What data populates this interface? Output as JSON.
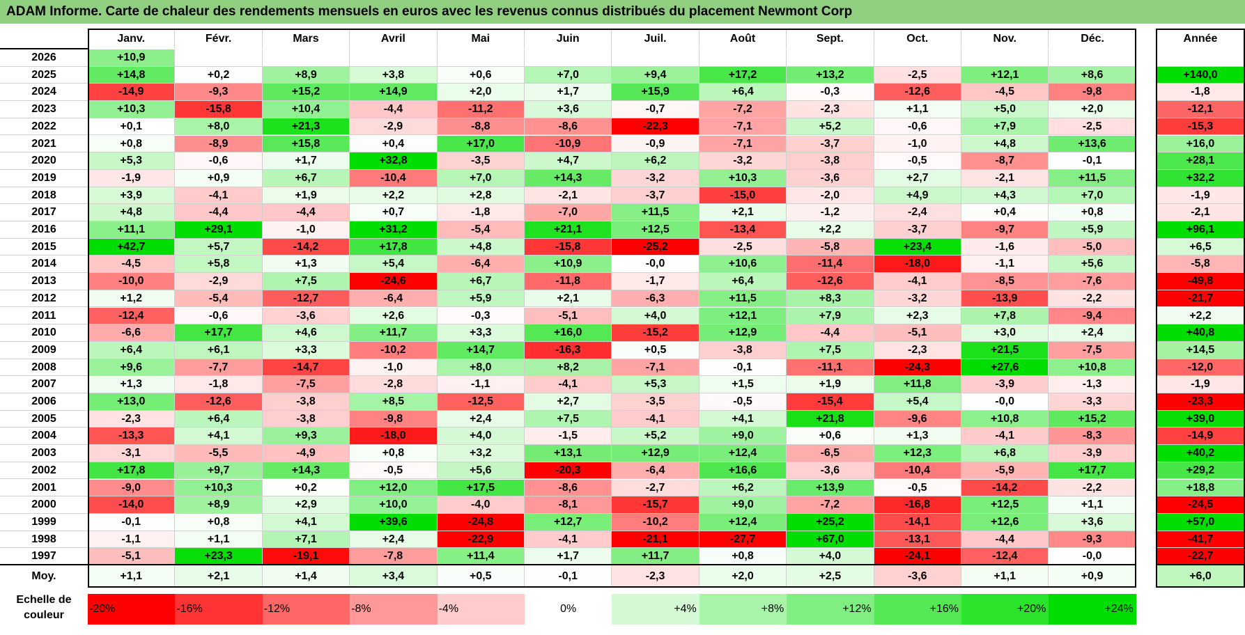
{
  "title": "ADAM Informe. Carte de chaleur des rendements mensuels en euros avec les revenus connus distribués du placement Newmont Corp",
  "chart_data": {
    "type": "heatmap",
    "title": "ADAM Informe. Carte de chaleur des rendements mensuels en euros avec les revenus connus distribués du placement Newmont Corp",
    "months": [
      "Janv.",
      "Févr.",
      "Mars",
      "Avril",
      "Mai",
      "Juin",
      "Juil.",
      "Août",
      "Sept.",
      "Oct.",
      "Nov.",
      "Déc."
    ],
    "year_header": "Année",
    "rows": [
      {
        "year": "2026",
        "values": [
          "+10,9",
          "",
          "",
          "",
          "",
          "",
          "",
          "",
          "",
          "",
          "",
          ""
        ],
        "annual": ""
      },
      {
        "year": "2025",
        "values": [
          "+14,8",
          "+0,2",
          "+8,9",
          "+3,8",
          "+0,6",
          "+7,0",
          "+9,4",
          "+17,2",
          "+13,2",
          "-2,5",
          "+12,1",
          "+8,6"
        ],
        "annual": "+140,0"
      },
      {
        "year": "2024",
        "values": [
          "-14,9",
          "-9,3",
          "+15,2",
          "+14,9",
          "+2,0",
          "+1,7",
          "+15,9",
          "+6,4",
          "-0,3",
          "-12,6",
          "-4,5",
          "-9,8"
        ],
        "annual": "-1,8"
      },
      {
        "year": "2023",
        "values": [
          "+10,3",
          "-15,8",
          "+10,4",
          "-4,4",
          "-11,2",
          "+3,6",
          "-0,7",
          "-7,2",
          "-2,3",
          "+1,1",
          "+5,0",
          "+2,0"
        ],
        "annual": "-12,1"
      },
      {
        "year": "2022",
        "values": [
          "+0,1",
          "+8,0",
          "+21,3",
          "-2,9",
          "-8,8",
          "-8,6",
          "-22,3",
          "-7,1",
          "+5,2",
          "-0,6",
          "+7,9",
          "-2,5"
        ],
        "annual": "-15,3"
      },
      {
        "year": "2021",
        "values": [
          "+0,8",
          "-8,9",
          "+15,8",
          "+0,4",
          "+17,0",
          "-10,9",
          "-0,9",
          "-7,1",
          "-3,7",
          "-1,0",
          "+4,8",
          "+13,6"
        ],
        "annual": "+16,0"
      },
      {
        "year": "2020",
        "values": [
          "+5,3",
          "-0,6",
          "+1,7",
          "+32,8",
          "-3,5",
          "+4,7",
          "+6,2",
          "-3,2",
          "-3,8",
          "-0,5",
          "-8,7",
          "-0,1"
        ],
        "annual": "+28,1"
      },
      {
        "year": "2019",
        "values": [
          "-1,9",
          "+0,9",
          "+6,7",
          "-10,4",
          "+7,0",
          "+14,3",
          "-3,2",
          "+10,3",
          "-3,6",
          "+2,7",
          "-2,1",
          "+11,5"
        ],
        "annual": "+32,2"
      },
      {
        "year": "2018",
        "values": [
          "+3,9",
          "-4,1",
          "+1,9",
          "+2,2",
          "+2,8",
          "-2,1",
          "-3,7",
          "-15,0",
          "-2,0",
          "+4,9",
          "+4,3",
          "+7,0"
        ],
        "annual": "-1,9"
      },
      {
        "year": "2017",
        "values": [
          "+4,8",
          "-4,4",
          "-4,4",
          "+0,7",
          "-1,8",
          "-7,0",
          "+11,5",
          "+2,1",
          "-1,2",
          "-2,4",
          "+0,4",
          "+0,8"
        ],
        "annual": "-2,1"
      },
      {
        "year": "2016",
        "values": [
          "+11,1",
          "+29,1",
          "-1,0",
          "+31,2",
          "-5,4",
          "+21,1",
          "+12,5",
          "-13,4",
          "+2,2",
          "-3,7",
          "-9,7",
          "+5,9"
        ],
        "annual": "+96,1"
      },
      {
        "year": "2015",
        "values": [
          "+42,7",
          "+5,7",
          "-14,2",
          "+17,8",
          "+4,8",
          "-15,8",
          "-25,2",
          "-2,5",
          "-5,8",
          "+23,4",
          "-1,6",
          "-5,0"
        ],
        "annual": "+6,5"
      },
      {
        "year": "2014",
        "values": [
          "-4,5",
          "+5,8",
          "+1,3",
          "+5,4",
          "-6,4",
          "+10,9",
          "-0,0",
          "+10,6",
          "-11,4",
          "-18,0",
          "-1,1",
          "+5,6"
        ],
        "annual": "-5,8"
      },
      {
        "year": "2013",
        "values": [
          "-10,0",
          "-2,9",
          "+7,5",
          "-24,6",
          "+6,7",
          "-11,8",
          "-1,7",
          "+6,4",
          "-12,6",
          "-4,1",
          "-8,5",
          "-7,6"
        ],
        "annual": "-49,8"
      },
      {
        "year": "2012",
        "values": [
          "+1,2",
          "-5,4",
          "-12,7",
          "-6,4",
          "+5,9",
          "+2,1",
          "-6,3",
          "+11,5",
          "+8,3",
          "-3,2",
          "-13,9",
          "-2,2"
        ],
        "annual": "-21,7"
      },
      {
        "year": "2011",
        "values": [
          "-12,4",
          "-0,6",
          "-3,6",
          "+2,6",
          "-0,3",
          "-5,1",
          "+4,0",
          "+12,1",
          "+7,9",
          "+2,3",
          "+7,8",
          "-9,4"
        ],
        "annual": "+2,2"
      },
      {
        "year": "2010",
        "values": [
          "-6,6",
          "+17,7",
          "+4,6",
          "+11,7",
          "+3,3",
          "+16,0",
          "-15,2",
          "+12,9",
          "-4,4",
          "-5,1",
          "+3,0",
          "+2,4"
        ],
        "annual": "+40,8"
      },
      {
        "year": "2009",
        "values": [
          "+6,4",
          "+6,1",
          "+3,3",
          "-10,2",
          "+14,7",
          "-16,3",
          "+0,5",
          "-3,8",
          "+7,5",
          "-2,3",
          "+21,5",
          "-7,5"
        ],
        "annual": "+14,5"
      },
      {
        "year": "2008",
        "values": [
          "+9,6",
          "-7,7",
          "-14,7",
          "-1,0",
          "+8,0",
          "+8,2",
          "-7,1",
          "-0,1",
          "-11,1",
          "-24,3",
          "+27,6",
          "+10,8"
        ],
        "annual": "-12,0"
      },
      {
        "year": "2007",
        "values": [
          "+1,3",
          "-1,8",
          "-7,5",
          "-2,8",
          "-1,1",
          "-4,1",
          "+5,3",
          "+1,5",
          "+1,9",
          "+11,8",
          "-3,9",
          "-1,3"
        ],
        "annual": "-1,9"
      },
      {
        "year": "2006",
        "values": [
          "+13,0",
          "-12,6",
          "-3,8",
          "+8,5",
          "-12,5",
          "+2,7",
          "-3,5",
          "-0,5",
          "-15,4",
          "+5,4",
          "-0,0",
          "-3,3"
        ],
        "annual": "-23,3"
      },
      {
        "year": "2005",
        "values": [
          "-2,3",
          "+6,4",
          "-3,8",
          "-9,8",
          "+2,4",
          "+7,5",
          "-4,1",
          "+4,1",
          "+21,8",
          "-9,6",
          "+10,8",
          "+15,2"
        ],
        "annual": "+39,0"
      },
      {
        "year": "2004",
        "values": [
          "-13,3",
          "+4,1",
          "+9,3",
          "-18,0",
          "+4,0",
          "-1,5",
          "+5,2",
          "+9,0",
          "+0,6",
          "+1,3",
          "-4,1",
          "-8,3"
        ],
        "annual": "-14,9"
      },
      {
        "year": "2003",
        "values": [
          "-3,1",
          "-5,5",
          "-4,9",
          "+0,8",
          "+3,2",
          "+13,1",
          "+12,9",
          "+12,4",
          "-6,5",
          "+12,3",
          "+6,8",
          "-3,9"
        ],
        "annual": "+40,2"
      },
      {
        "year": "2002",
        "values": [
          "+17,8",
          "+9,7",
          "+14,3",
          "-0,5",
          "+5,6",
          "-20,3",
          "-6,4",
          "+16,6",
          "-3,6",
          "-10,4",
          "-5,9",
          "+17,7"
        ],
        "annual": "+29,2"
      },
      {
        "year": "2001",
        "values": [
          "-9,0",
          "+10,3",
          "+0,2",
          "+12,0",
          "+17,5",
          "-8,6",
          "-2,7",
          "+6,2",
          "+13,9",
          "-0,5",
          "-14,2",
          "-2,2"
        ],
        "annual": "+18,8"
      },
      {
        "year": "2000",
        "values": [
          "-14,0",
          "+8,9",
          "+2,9",
          "+10,0",
          "-4,0",
          "-8,1",
          "-15,7",
          "+9,0",
          "-7,2",
          "-16,8",
          "+12,5",
          "+1,1"
        ],
        "annual": "-24,5"
      },
      {
        "year": "1999",
        "values": [
          "-0,1",
          "+0,8",
          "+4,1",
          "+39,6",
          "-24,8",
          "+12,7",
          "-10,2",
          "+12,4",
          "+25,2",
          "-14,1",
          "+12,6",
          "+3,6"
        ],
        "annual": "+57,0"
      },
      {
        "year": "1998",
        "values": [
          "-1,1",
          "+1,1",
          "+7,1",
          "+2,4",
          "-22,9",
          "-4,1",
          "-21,1",
          "-27,7",
          "+67,0",
          "-13,1",
          "-4,4",
          "-9,3"
        ],
        "annual": "-41,7"
      },
      {
        "year": "1997",
        "values": [
          "-5,1",
          "+23,3",
          "-19,1",
          "-7,8",
          "+11,4",
          "+1,7",
          "+11,7",
          "+0,8",
          "+4,0",
          "-24,1",
          "-12,4",
          "-0,0"
        ],
        "annual": "-22,7"
      }
    ],
    "average": {
      "label": "Moy.",
      "values": [
        "+1,1",
        "+2,1",
        "+1,4",
        "+3,4",
        "+0,5",
        "-0,1",
        "-2,3",
        "+2,0",
        "+2,5",
        "-3,6",
        "+1,1",
        "+0,9"
      ],
      "annual": "+6,0"
    },
    "scale": {
      "label_line1": "Echelle de",
      "label_line2": "couleur",
      "steps": [
        "-20%",
        "-16%",
        "-12%",
        "-8%",
        "-4%",
        "0%",
        "+4%",
        "+8%",
        "+12%",
        "+16%",
        "+20%",
        "+24%"
      ],
      "step_values": [
        -20,
        -16,
        -12,
        -8,
        -4,
        0,
        4,
        8,
        12,
        16,
        20,
        24
      ]
    },
    "colors": {
      "negative_max": "#ff0000",
      "positive_max": "#00dd00",
      "neutral": "#ffffff",
      "title_bg": "#8fcf7f"
    }
  }
}
